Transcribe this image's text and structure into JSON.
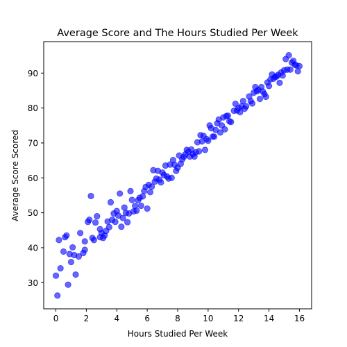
{
  "chart_data": {
    "type": "scatter",
    "title": "Average Score and The Hours Studied Per Week",
    "xlabel": "Hours Studied Per Week",
    "ylabel": "Average Score Scored",
    "xlim": [
      -0.8,
      16.8
    ],
    "ylim": [
      22.5,
      99
    ],
    "xticks": [
      0,
      2,
      4,
      6,
      8,
      10,
      12,
      14,
      16
    ],
    "yticks": [
      30,
      40,
      50,
      60,
      70,
      80,
      90
    ],
    "grid": false,
    "marker_color": "#0000ff",
    "marker_alpha": 0.6,
    "points": [
      [
        0.0,
        32.0
      ],
      [
        0.1,
        26.3
      ],
      [
        0.2,
        42.2
      ],
      [
        0.3,
        34.1
      ],
      [
        0.5,
        38.9
      ],
      [
        0.6,
        43.0
      ],
      [
        0.7,
        43.5
      ],
      [
        0.8,
        29.4
      ],
      [
        0.9,
        38.2
      ],
      [
        1.0,
        35.9
      ],
      [
        1.1,
        40.1
      ],
      [
        1.2,
        37.9
      ],
      [
        1.3,
        32.3
      ],
      [
        1.5,
        37.5
      ],
      [
        1.6,
        44.2
      ],
      [
        1.8,
        38.5
      ],
      [
        1.9,
        39.4
      ],
      [
        1.9,
        41.8
      ],
      [
        2.1,
        47.4
      ],
      [
        2.2,
        48.0
      ],
      [
        2.3,
        54.8
      ],
      [
        2.4,
        42.8
      ],
      [
        2.5,
        42.2
      ],
      [
        2.6,
        47.2
      ],
      [
        2.7,
        49.0
      ],
      [
        2.9,
        43.0
      ],
      [
        2.9,
        45.3
      ],
      [
        3.0,
        44.2
      ],
      [
        3.1,
        42.8
      ],
      [
        3.2,
        43.5
      ],
      [
        3.3,
        44.8
      ],
      [
        3.4,
        47.5
      ],
      [
        3.5,
        45.9
      ],
      [
        3.6,
        53.0
      ],
      [
        3.7,
        48.0
      ],
      [
        3.8,
        49.8
      ],
      [
        3.9,
        47.4
      ],
      [
        4.0,
        50.5
      ],
      [
        4.1,
        49.2
      ],
      [
        4.2,
        55.5
      ],
      [
        4.3,
        46.0
      ],
      [
        4.4,
        48.5
      ],
      [
        4.5,
        51.5
      ],
      [
        4.6,
        50.0
      ],
      [
        4.7,
        47.3
      ],
      [
        4.8,
        49.8
      ],
      [
        4.9,
        56.2
      ],
      [
        5.0,
        53.7
      ],
      [
        5.1,
        50.4
      ],
      [
        5.2,
        52.0
      ],
      [
        5.3,
        50.6
      ],
      [
        5.4,
        53.6
      ],
      [
        5.5,
        54.3
      ],
      [
        5.6,
        52.0
      ],
      [
        5.7,
        54.7
      ],
      [
        5.8,
        56.2
      ],
      [
        5.9,
        57.4
      ],
      [
        6.0,
        51.2
      ],
      [
        6.1,
        58.0
      ],
      [
        6.2,
        55.9
      ],
      [
        6.3,
        57.5
      ],
      [
        6.4,
        62.2
      ],
      [
        6.5,
        58.9
      ],
      [
        6.6,
        59.8
      ],
      [
        6.7,
        62.0
      ],
      [
        6.8,
        59.5
      ],
      [
        6.9,
        58.7
      ],
      [
        7.0,
        61.5
      ],
      [
        7.1,
        60.8
      ],
      [
        7.2,
        63.5
      ],
      [
        7.3,
        60.4
      ],
      [
        7.4,
        59.8
      ],
      [
        7.5,
        63.8
      ],
      [
        7.6,
        60.0
      ],
      [
        7.7,
        65.1
      ],
      [
        7.8,
        63.7
      ],
      [
        7.9,
        62.0
      ],
      [
        8.0,
        62.9
      ],
      [
        8.1,
        66.4
      ],
      [
        8.2,
        64.0
      ],
      [
        8.3,
        65.3
      ],
      [
        8.4,
        66.0
      ],
      [
        8.5,
        66.7
      ],
      [
        8.6,
        68.0
      ],
      [
        8.7,
        67.5
      ],
      [
        8.8,
        66.1
      ],
      [
        8.9,
        68.1
      ],
      [
        9.0,
        66.8
      ],
      [
        9.1,
        66.1
      ],
      [
        9.2,
        67.3
      ],
      [
        9.3,
        70.2
      ],
      [
        9.4,
        67.6
      ],
      [
        9.5,
        72.2
      ],
      [
        9.6,
        70.4
      ],
      [
        9.7,
        72.0
      ],
      [
        9.8,
        68.0
      ],
      [
        9.9,
        71.1
      ],
      [
        10.0,
        70.6
      ],
      [
        10.1,
        75.0
      ],
      [
        10.2,
        74.2
      ],
      [
        10.3,
        71.8
      ],
      [
        10.4,
        71.8
      ],
      [
        10.5,
        73.7
      ],
      [
        10.6,
        75.6
      ],
      [
        10.7,
        76.7
      ],
      [
        10.8,
        73.0
      ],
      [
        10.9,
        75.0
      ],
      [
        11.0,
        77.3
      ],
      [
        11.1,
        73.9
      ],
      [
        11.2,
        77.7
      ],
      [
        11.3,
        77.8
      ],
      [
        11.4,
        76.2
      ],
      [
        11.5,
        76.0
      ],
      [
        11.7,
        79.2
      ],
      [
        11.8,
        81.2
      ],
      [
        11.9,
        79.3
      ],
      [
        12.0,
        80.0
      ],
      [
        12.1,
        78.8
      ],
      [
        12.2,
        80.5
      ],
      [
        12.3,
        82.0
      ],
      [
        12.4,
        79.8
      ],
      [
        12.5,
        80.5
      ],
      [
        12.7,
        83.3
      ],
      [
        12.8,
        82.0
      ],
      [
        12.9,
        81.3
      ],
      [
        13.0,
        84.4
      ],
      [
        13.1,
        86.0
      ],
      [
        13.2,
        84.8
      ],
      [
        13.3,
        85.2
      ],
      [
        13.4,
        82.6
      ],
      [
        13.5,
        86.0
      ],
      [
        13.6,
        84.7
      ],
      [
        13.7,
        84.0
      ],
      [
        13.8,
        83.2
      ],
      [
        13.9,
        87.3
      ],
      [
        14.0,
        86.3
      ],
      [
        14.1,
        88.2
      ],
      [
        14.2,
        89.6
      ],
      [
        14.3,
        88.4
      ],
      [
        14.4,
        88.9
      ],
      [
        14.5,
        89.0
      ],
      [
        14.6,
        89.5
      ],
      [
        14.7,
        87.2
      ],
      [
        14.8,
        90.2
      ],
      [
        14.9,
        89.3
      ],
      [
        15.0,
        90.8
      ],
      [
        15.1,
        94.0
      ],
      [
        15.2,
        91.0
      ],
      [
        15.3,
        95.1
      ],
      [
        15.4,
        91.0
      ],
      [
        15.5,
        93.0
      ],
      [
        15.6,
        93.5
      ],
      [
        15.7,
        92.4
      ],
      [
        15.8,
        92.2
      ],
      [
        15.9,
        90.5
      ],
      [
        16.0,
        92.0
      ]
    ]
  }
}
